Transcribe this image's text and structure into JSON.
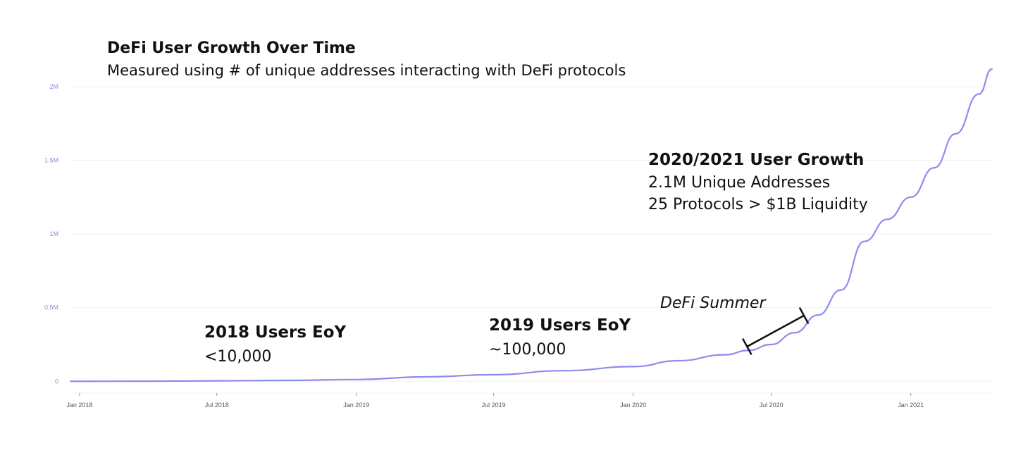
{
  "chart_data": {
    "type": "line",
    "title": "DeFi User Growth Over Time",
    "subtitle": "Measured using # of unique addresses interacting with DeFi protocols",
    "xlabel": "",
    "ylabel": "",
    "y_ticks": [
      {
        "value": 0,
        "label": "0"
      },
      {
        "value": 500000,
        "label": "0.5M"
      },
      {
        "value": 1000000,
        "label": "1M"
      },
      {
        "value": 1500000,
        "label": "1.5M"
      },
      {
        "value": 2000000,
        "label": "2M"
      }
    ],
    "x_ticks": [
      {
        "date": "2018-01-01",
        "label": "Jan 2018"
      },
      {
        "date": "2018-07-01",
        "label": "Jul 2018"
      },
      {
        "date": "2019-01-01",
        "label": "Jan 2019"
      },
      {
        "date": "2019-07-01",
        "label": "Jul 2019"
      },
      {
        "date": "2020-01-01",
        "label": "Jan 2020"
      },
      {
        "date": "2020-07-01",
        "label": "Jul 2020"
      },
      {
        "date": "2021-01-01",
        "label": "Jan 2021"
      }
    ],
    "xlim": [
      "2017-12-20",
      "2021-04-20"
    ],
    "ylim": [
      -80000,
      2120000
    ],
    "grid": "horizontal",
    "line_color": "#8c8cf0",
    "series": [
      {
        "points": [
          {
            "date": "2017-12-20",
            "value": 0
          },
          {
            "date": "2018-04-01",
            "value": 1000
          },
          {
            "date": "2018-07-01",
            "value": 3000
          },
          {
            "date": "2018-10-01",
            "value": 6000
          },
          {
            "date": "2019-01-01",
            "value": 12000
          },
          {
            "date": "2019-04-01",
            "value": 30000
          },
          {
            "date": "2019-07-01",
            "value": 45000
          },
          {
            "date": "2019-10-01",
            "value": 72000
          },
          {
            "date": "2020-01-01",
            "value": 100000
          },
          {
            "date": "2020-03-01",
            "value": 140000
          },
          {
            "date": "2020-05-01",
            "value": 180000
          },
          {
            "date": "2020-06-01",
            "value": 210000
          },
          {
            "date": "2020-07-01",
            "value": 250000
          },
          {
            "date": "2020-08-01",
            "value": 330000
          },
          {
            "date": "2020-09-01",
            "value": 450000
          },
          {
            "date": "2020-10-01",
            "value": 620000
          },
          {
            "date": "2020-11-01",
            "value": 950000
          },
          {
            "date": "2020-12-01",
            "value": 1100000
          },
          {
            "date": "2021-01-01",
            "value": 1250000
          },
          {
            "date": "2021-02-01",
            "value": 1450000
          },
          {
            "date": "2021-03-01",
            "value": 1680000
          },
          {
            "date": "2021-04-01",
            "value": 1950000
          },
          {
            "date": "2021-04-18",
            "value": 2120000
          }
        ]
      }
    ],
    "annotations": {
      "y2018": {
        "heading": "2018 Users EoY",
        "value": "<10,000"
      },
      "y2019": {
        "heading": "2019 Users EoY",
        "value": "~100,000"
      },
      "growth": {
        "heading": "2020/2021 User Growth",
        "line1": "2.1M Unique Addresses",
        "line2": "25 Protocols > $1B Liquidity"
      },
      "summer": {
        "label": "DeFi Summer",
        "start": "2020-06-01",
        "end": "2020-08-15"
      }
    }
  }
}
